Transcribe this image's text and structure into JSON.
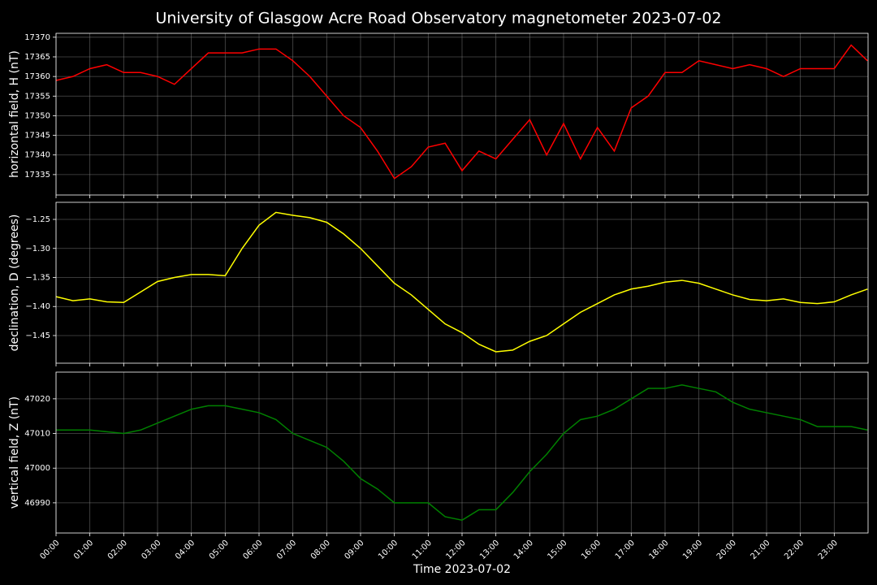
{
  "title": "University of Glasgow Acre Road Observatory magnetometer 2023-07-02",
  "chart_data": [
    {
      "type": "line",
      "ylabel": "horizontal field, H (nT)",
      "x": [
        "00:00",
        "00:30",
        "01:00",
        "01:30",
        "02:00",
        "02:30",
        "03:00",
        "03:30",
        "04:00",
        "04:30",
        "05:00",
        "05:30",
        "06:00",
        "06:30",
        "07:00",
        "07:30",
        "08:00",
        "08:30",
        "09:00",
        "09:30",
        "10:00",
        "10:30",
        "11:00",
        "11:30",
        "12:00",
        "12:30",
        "13:00",
        "13:30",
        "14:00",
        "14:30",
        "15:00",
        "15:30",
        "16:00",
        "16:30",
        "17:00",
        "17:30",
        "18:00",
        "18:30",
        "19:00",
        "19:30",
        "20:00",
        "20:30",
        "21:00",
        "21:30",
        "22:00",
        "22:30",
        "23:00",
        "23:30",
        "23:59"
      ],
      "series": [
        {
          "color": "#ff0000",
          "values": [
            17359,
            17360,
            17362,
            17363,
            17361,
            17361,
            17360,
            17358,
            17362,
            17366,
            17366,
            17366,
            17367,
            17367,
            17364,
            17360,
            17355,
            17350,
            17347,
            17341,
            17334,
            17337,
            17342,
            17343,
            17336,
            17341,
            17339,
            17344,
            17349,
            17340,
            17348,
            17339,
            17347,
            17341,
            17352,
            17355,
            17361,
            17361,
            17364,
            17363,
            17362,
            17363,
            17362,
            17360,
            17362,
            17362,
            17362,
            17368,
            17364
          ]
        }
      ],
      "xlim": [
        "00:00",
        "24:00"
      ],
      "xticks": [
        "00:00",
        "01:00",
        "02:00",
        "03:00",
        "04:00",
        "05:00",
        "06:00",
        "07:00",
        "08:00",
        "09:00",
        "10:00",
        "11:00",
        "12:00",
        "13:00",
        "14:00",
        "15:00",
        "16:00",
        "17:00",
        "18:00",
        "19:00",
        "20:00",
        "21:00",
        "22:00",
        "23:00"
      ],
      "ylim": [
        17329.8,
        17371.0
      ],
      "yticks": [
        17335,
        17340,
        17345,
        17350,
        17355,
        17360,
        17365,
        17370
      ],
      "grid": true
    },
    {
      "type": "line",
      "ylabel": "declination, D (degrees)",
      "x": [
        "00:00",
        "00:30",
        "01:00",
        "01:30",
        "02:00",
        "02:30",
        "03:00",
        "03:30",
        "04:00",
        "04:30",
        "05:00",
        "05:30",
        "06:00",
        "06:30",
        "07:00",
        "07:30",
        "08:00",
        "08:30",
        "09:00",
        "09:30",
        "10:00",
        "10:30",
        "11:00",
        "11:30",
        "12:00",
        "12:30",
        "13:00",
        "13:30",
        "14:00",
        "14:30",
        "15:00",
        "15:30",
        "16:00",
        "16:30",
        "17:00",
        "17:30",
        "18:00",
        "18:30",
        "19:00",
        "19:30",
        "20:00",
        "20:30",
        "21:00",
        "21:30",
        "22:00",
        "22:30",
        "23:00",
        "23:30",
        "23:59"
      ],
      "series": [
        {
          "color": "#ffff00",
          "values": [
            -1.383,
            -1.39,
            -1.387,
            -1.392,
            -1.393,
            -1.375,
            -1.357,
            -1.35,
            -1.345,
            -1.345,
            -1.347,
            -1.3,
            -1.26,
            -1.238,
            -1.243,
            -1.247,
            -1.255,
            -1.275,
            -1.3,
            -1.33,
            -1.36,
            -1.38,
            -1.405,
            -1.43,
            -1.445,
            -1.465,
            -1.478,
            -1.475,
            -1.46,
            -1.45,
            -1.43,
            -1.41,
            -1.395,
            -1.38,
            -1.37,
            -1.365,
            -1.358,
            -1.355,
            -1.36,
            -1.37,
            -1.38,
            -1.388,
            -1.39,
            -1.387,
            -1.393,
            -1.395,
            -1.392,
            -1.38,
            -1.37
          ]
        }
      ],
      "xlim": [
        "00:00",
        "24:00"
      ],
      "xticks": [
        "00:00",
        "01:00",
        "02:00",
        "03:00",
        "04:00",
        "05:00",
        "06:00",
        "07:00",
        "08:00",
        "09:00",
        "10:00",
        "11:00",
        "12:00",
        "13:00",
        "14:00",
        "15:00",
        "16:00",
        "17:00",
        "18:00",
        "19:00",
        "20:00",
        "21:00",
        "22:00",
        "23:00"
      ],
      "ylim": [
        -1.4976,
        -1.2206
      ],
      "yticks": [
        {
          "value": -1.45,
          "label": "−1.45"
        },
        {
          "value": -1.4,
          "label": "−1.40"
        },
        {
          "value": -1.35,
          "label": "−1.35"
        },
        {
          "value": -1.3,
          "label": "−1.30"
        },
        {
          "value": -1.25,
          "label": "−1.25"
        }
      ],
      "grid": true
    },
    {
      "type": "line",
      "ylabel": "vertical field, Z (nT)",
      "xlabel": "Time 2023-07-02",
      "x": [
        "00:00",
        "00:30",
        "01:00",
        "01:30",
        "02:00",
        "02:30",
        "03:00",
        "03:30",
        "04:00",
        "04:30",
        "05:00",
        "05:30",
        "06:00",
        "06:30",
        "07:00",
        "07:30",
        "08:00",
        "08:30",
        "09:00",
        "09:30",
        "10:00",
        "10:30",
        "11:00",
        "11:30",
        "12:00",
        "12:30",
        "13:00",
        "13:30",
        "14:00",
        "14:30",
        "15:00",
        "15:30",
        "16:00",
        "16:30",
        "17:00",
        "17:30",
        "18:00",
        "18:30",
        "19:00",
        "19:30",
        "20:00",
        "20:30",
        "21:00",
        "21:30",
        "22:00",
        "22:30",
        "23:00",
        "23:30",
        "23:59"
      ],
      "series": [
        {
          "color": "#008000",
          "values": [
            47011,
            47011,
            47011,
            47010.5,
            47010,
            47011,
            47013,
            47015,
            47017,
            47018,
            47018,
            47017,
            47016,
            47014,
            47010,
            47008,
            47006,
            47002,
            46997,
            46994,
            46990,
            46990,
            46990,
            46986,
            46985,
            46988,
            46988,
            46993,
            46999,
            47004,
            47010,
            47014,
            47015,
            47017,
            47020,
            47023,
            47023,
            47024,
            47023,
            47022,
            47019,
            47017,
            47016,
            47015,
            47014,
            47012,
            47012,
            47012,
            47011
          ]
        }
      ],
      "xlim": [
        "00:00",
        "24:00"
      ],
      "xticks": [
        "00:00",
        "01:00",
        "02:00",
        "03:00",
        "04:00",
        "05:00",
        "06:00",
        "07:00",
        "08:00",
        "09:00",
        "10:00",
        "11:00",
        "12:00",
        "13:00",
        "14:00",
        "15:00",
        "16:00",
        "17:00",
        "18:00",
        "19:00",
        "20:00",
        "21:00",
        "22:00",
        "23:00"
      ],
      "ylim": [
        46981.3,
        47027.7
      ],
      "yticks": [
        46990,
        47000,
        47010,
        47020
      ],
      "grid": true,
      "show_xticklabels": true
    }
  ]
}
